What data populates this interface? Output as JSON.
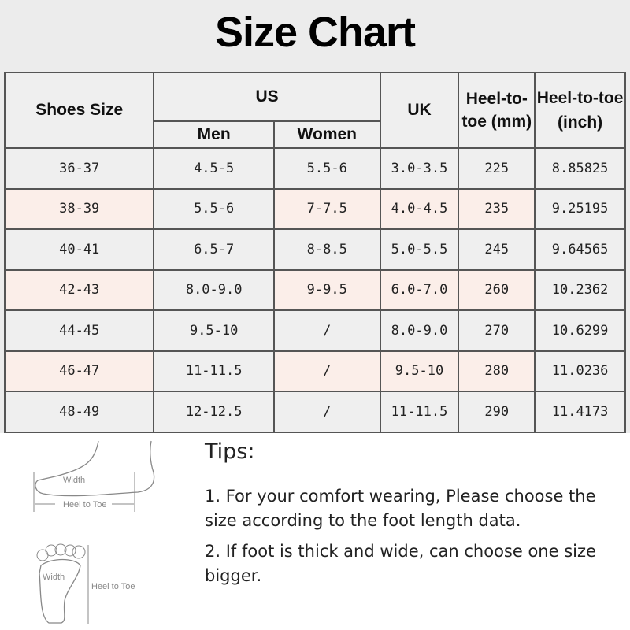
{
  "title": "Size Chart",
  "headers": {
    "shoes_size": "Shoes Size",
    "us": "US",
    "men": "Men",
    "women": "Women",
    "uk": "UK",
    "heel_mm": "Heel-to-toe (mm)",
    "heel_inch": "Heel-to-toe (inch)"
  },
  "rows": [
    [
      "36-37",
      "4.5-5",
      "5.5-6",
      "3.0-3.5",
      "225",
      "8.85825"
    ],
    [
      "38-39",
      "5.5-6",
      "7-7.5",
      "4.0-4.5",
      "235",
      "9.25195"
    ],
    [
      "40-41",
      "6.5-7",
      "8-8.5",
      "5.0-5.5",
      "245",
      "9.64565"
    ],
    [
      "42-43",
      "8.0-9.0",
      "9-9.5",
      "6.0-7.0",
      "260",
      "10.2362"
    ],
    [
      "44-45",
      "9.5-10",
      "/",
      "8.0-9.0",
      "270",
      "10.6299"
    ],
    [
      "46-47",
      "11-11.5",
      "/",
      "9.5-10",
      "280",
      "11.0236"
    ],
    [
      "48-49",
      "12-12.5",
      "/",
      "11-11.5",
      "290",
      "11.4173"
    ]
  ],
  "diagram": {
    "width": "Width",
    "heel_to_toe": "Heel to Toe"
  },
  "tips": {
    "heading": "Tips:",
    "items": [
      "1. For your comfort wearing, Please choose the size according to the foot length data.",
      "2. If foot is thick and wide, can choose one size bigger."
    ]
  }
}
